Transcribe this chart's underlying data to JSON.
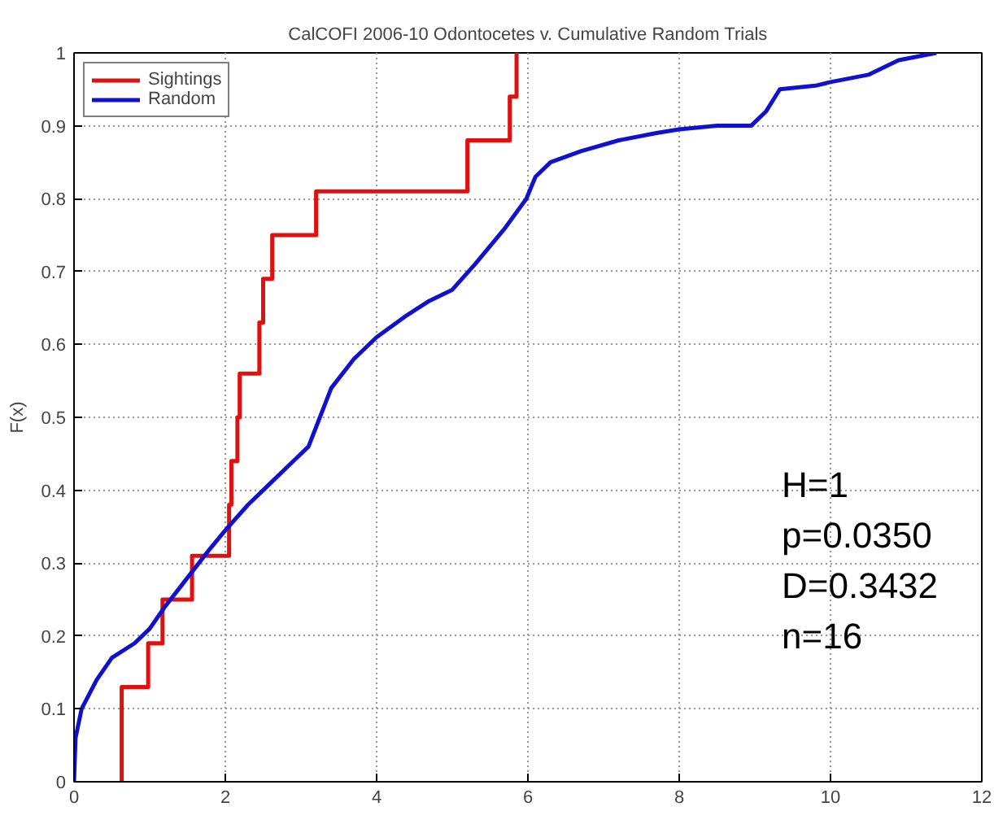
{
  "chart_data": {
    "type": "step",
    "title": "CalCOFI 2006-10 Odontocetes v. Cumulative Random Trials",
    "ylabel": "F(x)",
    "xlim": [
      0,
      12
    ],
    "xticks": [
      0,
      2,
      4,
      6,
      8,
      10,
      12
    ],
    "ylim": [
      0,
      1
    ],
    "yticks": [
      0,
      0.1,
      0.2,
      0.3,
      0.4,
      0.5,
      0.6,
      0.7,
      0.8,
      0.9,
      1
    ],
    "grid": true,
    "legend": "top left",
    "line_style": "solid",
    "marker": "none",
    "annotations": [
      "H=1",
      "p=0.0350",
      "D=0.3432",
      "n=16"
    ],
    "series": [
      {
        "name": "Sightings",
        "color": "#e01010",
        "x": [
          0.63,
          0.63,
          0.63,
          0.98,
          1.17,
          1.56,
          2.05,
          2.08,
          2.16,
          2.19,
          2.45,
          2.5,
          2.62,
          3.2,
          5.2,
          5.76,
          5.85
        ],
        "values": [
          0,
          0.06,
          0.13,
          0.19,
          0.25,
          0.31,
          0.38,
          0.44,
          0.5,
          0.56,
          0.63,
          0.69,
          0.75,
          0.81,
          0.88,
          0.94,
          1.0
        ]
      },
      {
        "name": "Random",
        "color": "#1010d0",
        "type": "line",
        "x": [
          0,
          0.02,
          0.1,
          0.3,
          0.5,
          0.8,
          1.0,
          1.2,
          1.5,
          1.8,
          2.0,
          2.3,
          2.6,
          2.9,
          3.1,
          3.25,
          3.4,
          3.7,
          4.0,
          4.4,
          4.7,
          5.0,
          5.3,
          5.7,
          5.98,
          6.1,
          6.3,
          6.7,
          7.2,
          7.7,
          8.0,
          8.5,
          8.95,
          9.15,
          9.33,
          9.8,
          10.0,
          10.5,
          10.9,
          11.4
        ],
        "values": [
          0,
          0.06,
          0.1,
          0.14,
          0.17,
          0.19,
          0.21,
          0.24,
          0.28,
          0.32,
          0.345,
          0.38,
          0.41,
          0.44,
          0.46,
          0.5,
          0.54,
          0.58,
          0.61,
          0.64,
          0.66,
          0.675,
          0.71,
          0.76,
          0.8,
          0.83,
          0.85,
          0.865,
          0.88,
          0.89,
          0.895,
          0.9,
          0.9,
          0.92,
          0.95,
          0.955,
          0.96,
          0.97,
          0.99,
          1.0
        ]
      }
    ]
  }
}
